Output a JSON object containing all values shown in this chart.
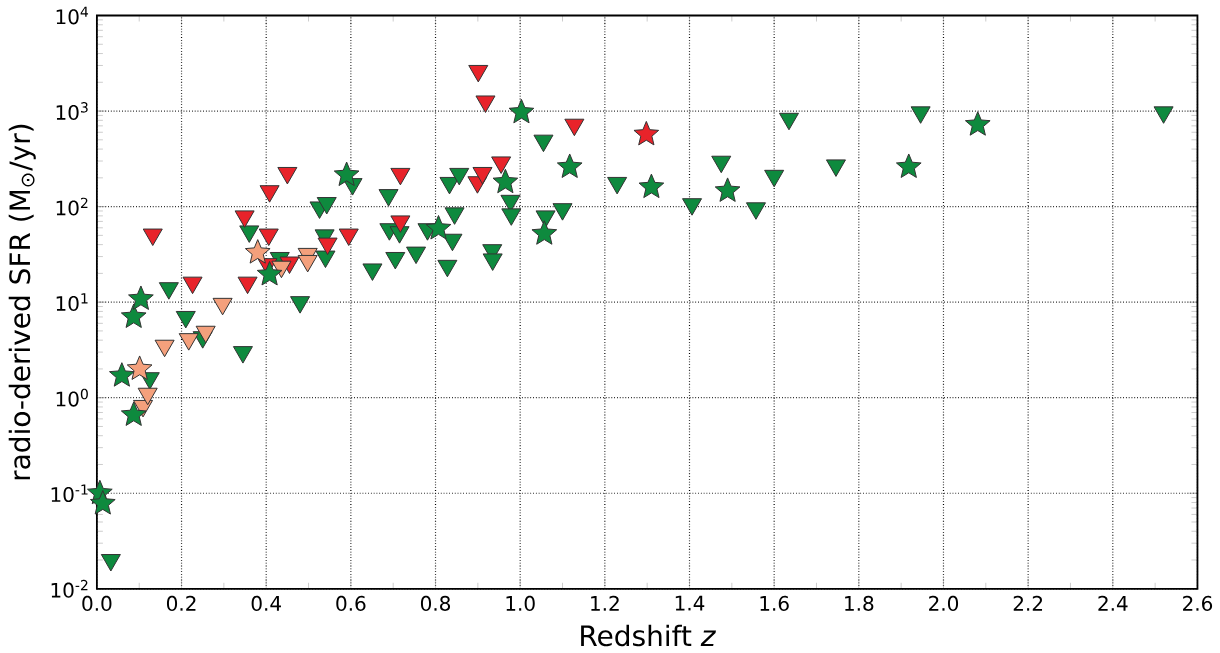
{
  "chart_data": {
    "type": "scatter",
    "xlabel": "Redshift *z*",
    "ylabel": "radio-derived SFR (M$_{⊙}$/yr)",
    "xlim": [
      0,
      2.6
    ],
    "ylim": [
      0.01,
      10000
    ],
    "log": "y",
    "grid": true,
    "xticks": [
      {
        "value": 0,
        "label": "0.0"
      },
      {
        "value": 0.2,
        "label": "0.2"
      },
      {
        "value": 0.4,
        "label": "0.4"
      },
      {
        "value": 0.6,
        "label": "0.6"
      },
      {
        "value": 0.8,
        "label": "0.8"
      },
      {
        "value": 1.0,
        "label": "1.0"
      },
      {
        "value": 1.2,
        "label": "1.2"
      },
      {
        "value": 1.4,
        "label": "1.4"
      },
      {
        "value": 1.6,
        "label": "1.6"
      },
      {
        "value": 1.8,
        "label": "1.8"
      },
      {
        "value": 2.0,
        "label": "2.0"
      },
      {
        "value": 2.2,
        "label": "2.2"
      },
      {
        "value": 2.4,
        "label": "2.4"
      },
      {
        "value": 2.6,
        "label": "2.6"
      }
    ],
    "yticks": [
      {
        "value": 0.01,
        "label": "10$^{-2}$"
      },
      {
        "value": 0.1,
        "label": "10$^{-1}$"
      },
      {
        "value": 1,
        "label": "10$^{0}$"
      },
      {
        "value": 10,
        "label": "10$^{1}$"
      },
      {
        "value": 100,
        "label": "10$^{2}$"
      },
      {
        "value": 1000,
        "label": "10$^{3}$"
      },
      {
        "value": 10000,
        "label": "10$^{4}$"
      }
    ],
    "series": [
      {
        "marker": "triangle",
        "color": "#0e8a3e",
        "x": [
          0.033,
          0.17,
          0.125,
          0.21,
          0.345,
          0.25,
          0.36,
          0.48,
          0.432,
          0.526,
          0.543,
          0.538,
          0.54,
          0.604,
          0.689,
          0.833,
          0.856,
          0.977,
          0.979,
          1.06,
          1.1,
          0.691,
          0.715,
          0.651,
          0.705,
          0.754,
          0.781,
          0.84,
          0.845,
          0.828,
          0.934,
          0.935,
          1.055,
          1.229,
          1.406,
          1.475,
          1.557,
          1.6,
          1.635,
          1.746,
          1.946,
          2.52
        ],
        "values": [
          0.02,
          14,
          1.6,
          7,
          3,
          4.3,
          55,
          10,
          29,
          98,
          109,
          50,
          30,
          172,
          132,
          177,
          220,
          115,
          83,
          79,
          94,
          58,
          54,
          22,
          29,
          33,
          58,
          45,
          85,
          24,
          35,
          28,
          490,
          177,
          106,
          295,
          96,
          210,
          830,
          270,
          970,
          970
        ]
      },
      {
        "marker": "triangle",
        "color": "#e8232a",
        "x": [
          0.132,
          0.226,
          0.349,
          0.356,
          0.403,
          0.406,
          0.408,
          0.45,
          0.455,
          0.545,
          0.595,
          0.717,
          0.717,
          0.899,
          0.901,
          0.911,
          0.918,
          0.955,
          1.128
        ],
        "values": [
          51,
          16,
          79,
          16,
          25,
          51,
          145,
          225,
          26,
          41,
          51,
          220,
          70,
          180,
          2630,
          225,
          1260,
          290,
          720
        ]
      },
      {
        "marker": "triangle",
        "color": "#f4a07c",
        "x": [
          0.109,
          0.12,
          0.16,
          0.217,
          0.257,
          0.297,
          0.436,
          0.498,
          0.498
        ],
        "values": [
          0.82,
          1.1,
          3.5,
          4.1,
          4.9,
          9.6,
          23.5,
          32,
          27
        ]
      },
      {
        "marker": "star",
        "color": "#0e8a3e",
        "x": [
          0.007,
          0.014,
          0.059,
          0.087,
          0.087,
          0.104,
          0.408,
          0.59,
          0.807,
          0.965,
          1.003,
          1.057,
          1.117,
          1.31,
          1.49,
          1.918,
          2.081
        ],
        "values": [
          0.1,
          0.078,
          1.7,
          0.66,
          7,
          10.8,
          19.5,
          214,
          59,
          180,
          970,
          52,
          260,
          160,
          146,
          260,
          720
        ]
      },
      {
        "marker": "star",
        "color": "#e8232a",
        "x": [
          1.298
        ],
        "values": [
          570
        ]
      },
      {
        "marker": "star",
        "color": "#f4a07c",
        "x": [
          0.101,
          0.38
        ],
        "values": [
          2.0,
          33
        ]
      }
    ]
  }
}
